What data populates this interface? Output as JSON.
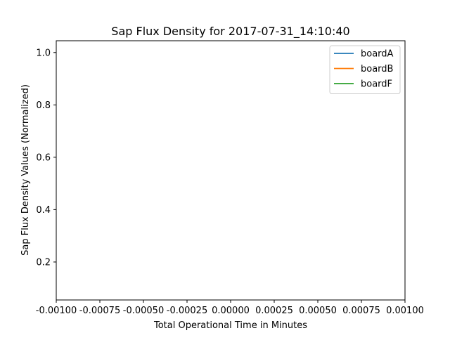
{
  "chart_data": {
    "type": "line",
    "title": "Sap Flux Density for 2017-07-31_14:10:40",
    "xlabel": "Total Operational Time in Minutes",
    "ylabel": "Sap Flux Density Values (Normalized)",
    "xlim": [
      -0.001,
      0.001
    ],
    "ylim": [
      0.055,
      1.045
    ],
    "xticks": [
      "-0.00100",
      "-0.00075",
      "-0.00050",
      "-0.00025",
      "0.00000",
      "0.00025",
      "0.00050",
      "0.00075",
      "0.00100"
    ],
    "xtick_values": [
      -0.001,
      -0.00075,
      -0.0005,
      -0.00025,
      0.0,
      0.00025,
      0.0005,
      0.00075,
      0.001
    ],
    "yticks": [
      "0.2",
      "0.4",
      "0.6",
      "0.8",
      "1.0"
    ],
    "ytick_values": [
      0.2,
      0.4,
      0.6,
      0.8,
      1.0
    ],
    "grid": false,
    "legend_position": "top-right",
    "series": [
      {
        "name": "boardA",
        "color": "#1f77b4",
        "x": [],
        "y": []
      },
      {
        "name": "boardB",
        "color": "#ff7f0e",
        "x": [],
        "y": []
      },
      {
        "name": "boardF",
        "color": "#2ca02c",
        "x": [],
        "y": []
      }
    ]
  }
}
